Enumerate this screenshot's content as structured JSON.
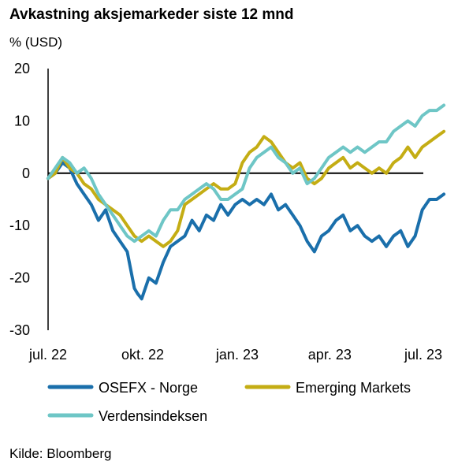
{
  "chart_data": {
    "type": "line",
    "title": "Avkastning aksjemarkeder siste 12 mnd",
    "ylabel": "% (USD)",
    "xlabel": "",
    "ylim": [
      -30,
      20
    ],
    "yticks": [
      "20",
      "10",
      "0",
      "-10",
      "-20",
      "-30"
    ],
    "ytick_values": [
      20,
      10,
      0,
      -10,
      -20,
      -30
    ],
    "x_ticks": [
      {
        "date": "2022-07-01",
        "label": "jul. 22"
      },
      {
        "date": "2022-10-01",
        "label": "okt. 22"
      },
      {
        "date": "2023-01-01",
        "label": "jan. 23"
      },
      {
        "date": "2023-04-01",
        "label": "apr. 23"
      },
      {
        "date": "2023-07-01",
        "label": "jul. 23"
      }
    ],
    "grid": false,
    "legend_position": "bottom",
    "series": [
      {
        "name": "OSEFX - Norge",
        "color": "#1a6fab",
        "points": [
          [
            "2022-07-01",
            -1
          ],
          [
            "2022-07-08",
            0
          ],
          [
            "2022-07-15",
            2
          ],
          [
            "2022-07-22",
            1
          ],
          [
            "2022-07-29",
            -2
          ],
          [
            "2022-08-05",
            -4
          ],
          [
            "2022-08-12",
            -6
          ],
          [
            "2022-08-19",
            -9
          ],
          [
            "2022-08-26",
            -7
          ],
          [
            "2022-09-02",
            -11
          ],
          [
            "2022-09-09",
            -13
          ],
          [
            "2022-09-16",
            -15
          ],
          [
            "2022-09-23",
            -22
          ],
          [
            "2022-09-26",
            -23
          ],
          [
            "2022-09-30",
            -24
          ],
          [
            "2022-10-07",
            -20
          ],
          [
            "2022-10-14",
            -21
          ],
          [
            "2022-10-21",
            -17
          ],
          [
            "2022-10-28",
            -14
          ],
          [
            "2022-11-04",
            -13
          ],
          [
            "2022-11-11",
            -12
          ],
          [
            "2022-11-18",
            -9
          ],
          [
            "2022-11-25",
            -11
          ],
          [
            "2022-12-02",
            -8
          ],
          [
            "2022-12-09",
            -9
          ],
          [
            "2022-12-16",
            -6
          ],
          [
            "2022-12-23",
            -8
          ],
          [
            "2022-12-30",
            -6
          ],
          [
            "2023-01-06",
            -5
          ],
          [
            "2023-01-13",
            -6
          ],
          [
            "2023-01-20",
            -5
          ],
          [
            "2023-01-27",
            -6
          ],
          [
            "2023-02-03",
            -4
          ],
          [
            "2023-02-10",
            -7
          ],
          [
            "2023-02-17",
            -6
          ],
          [
            "2023-02-24",
            -8
          ],
          [
            "2023-03-03",
            -10
          ],
          [
            "2023-03-10",
            -13
          ],
          [
            "2023-03-17",
            -15
          ],
          [
            "2023-03-24",
            -12
          ],
          [
            "2023-03-31",
            -11
          ],
          [
            "2023-04-07",
            -9
          ],
          [
            "2023-04-14",
            -8
          ],
          [
            "2023-04-21",
            -11
          ],
          [
            "2023-04-28",
            -10
          ],
          [
            "2023-05-05",
            -12
          ],
          [
            "2023-05-12",
            -13
          ],
          [
            "2023-05-19",
            -12
          ],
          [
            "2023-05-26",
            -14
          ],
          [
            "2023-06-02",
            -12
          ],
          [
            "2023-06-09",
            -11
          ],
          [
            "2023-06-16",
            -14
          ],
          [
            "2023-06-23",
            -12
          ],
          [
            "2023-06-30",
            -7
          ],
          [
            "2023-07-07",
            -5
          ],
          [
            "2023-07-14",
            -5
          ],
          [
            "2023-07-21",
            -4
          ]
        ]
      },
      {
        "name": "Emerging Markets",
        "color": "#c4ad14",
        "points": [
          [
            "2022-07-01",
            -1
          ],
          [
            "2022-07-08",
            0
          ],
          [
            "2022-07-15",
            3
          ],
          [
            "2022-07-22",
            1
          ],
          [
            "2022-07-29",
            0
          ],
          [
            "2022-08-05",
            -2
          ],
          [
            "2022-08-12",
            -3
          ],
          [
            "2022-08-19",
            -5
          ],
          [
            "2022-08-26",
            -6
          ],
          [
            "2022-09-02",
            -7
          ],
          [
            "2022-09-09",
            -8
          ],
          [
            "2022-09-16",
            -10
          ],
          [
            "2022-09-23",
            -12
          ],
          [
            "2022-09-30",
            -13
          ],
          [
            "2022-10-07",
            -12
          ],
          [
            "2022-10-14",
            -13
          ],
          [
            "2022-10-21",
            -14
          ],
          [
            "2022-10-28",
            -13
          ],
          [
            "2022-11-04",
            -11
          ],
          [
            "2022-11-11",
            -6
          ],
          [
            "2022-11-18",
            -5
          ],
          [
            "2022-11-25",
            -4
          ],
          [
            "2022-12-02",
            -3
          ],
          [
            "2022-12-09",
            -2
          ],
          [
            "2022-12-16",
            -3
          ],
          [
            "2022-12-23",
            -3
          ],
          [
            "2022-12-30",
            -2
          ],
          [
            "2023-01-06",
            2
          ],
          [
            "2023-01-13",
            4
          ],
          [
            "2023-01-20",
            5
          ],
          [
            "2023-01-27",
            7
          ],
          [
            "2023-02-03",
            6
          ],
          [
            "2023-02-10",
            4
          ],
          [
            "2023-02-17",
            2
          ],
          [
            "2023-02-24",
            1
          ],
          [
            "2023-03-03",
            2
          ],
          [
            "2023-03-10",
            -1
          ],
          [
            "2023-03-17",
            -2
          ],
          [
            "2023-03-24",
            -1
          ],
          [
            "2023-03-31",
            1
          ],
          [
            "2023-04-07",
            2
          ],
          [
            "2023-04-14",
            3
          ],
          [
            "2023-04-21",
            1
          ],
          [
            "2023-04-28",
            2
          ],
          [
            "2023-05-05",
            1
          ],
          [
            "2023-05-12",
            0
          ],
          [
            "2023-05-19",
            1
          ],
          [
            "2023-05-26",
            0
          ],
          [
            "2023-06-02",
            2
          ],
          [
            "2023-06-09",
            3
          ],
          [
            "2023-06-16",
            5
          ],
          [
            "2023-06-23",
            3
          ],
          [
            "2023-06-30",
            5
          ],
          [
            "2023-07-07",
            6
          ],
          [
            "2023-07-14",
            7
          ],
          [
            "2023-07-21",
            8
          ]
        ]
      },
      {
        "name": "Verdensindeksen",
        "color": "#6ec6c6",
        "points": [
          [
            "2022-07-01",
            -1
          ],
          [
            "2022-07-08",
            1
          ],
          [
            "2022-07-15",
            3
          ],
          [
            "2022-07-22",
            2
          ],
          [
            "2022-07-29",
            0
          ],
          [
            "2022-08-05",
            1
          ],
          [
            "2022-08-12",
            -1
          ],
          [
            "2022-08-19",
            -4
          ],
          [
            "2022-08-26",
            -6
          ],
          [
            "2022-09-02",
            -8
          ],
          [
            "2022-09-09",
            -10
          ],
          [
            "2022-09-16",
            -12
          ],
          [
            "2022-09-23",
            -13
          ],
          [
            "2022-09-30",
            -12
          ],
          [
            "2022-10-07",
            -11
          ],
          [
            "2022-10-14",
            -12
          ],
          [
            "2022-10-21",
            -9
          ],
          [
            "2022-10-28",
            -7
          ],
          [
            "2022-11-04",
            -7
          ],
          [
            "2022-11-11",
            -5
          ],
          [
            "2022-11-18",
            -4
          ],
          [
            "2022-11-25",
            -3
          ],
          [
            "2022-12-02",
            -2
          ],
          [
            "2022-12-09",
            -3
          ],
          [
            "2022-12-16",
            -5
          ],
          [
            "2022-12-23",
            -5
          ],
          [
            "2022-12-30",
            -4
          ],
          [
            "2023-01-06",
            -3
          ],
          [
            "2023-01-13",
            1
          ],
          [
            "2023-01-20",
            3
          ],
          [
            "2023-01-27",
            4
          ],
          [
            "2023-02-03",
            5
          ],
          [
            "2023-02-10",
            3
          ],
          [
            "2023-02-17",
            2
          ],
          [
            "2023-02-24",
            0
          ],
          [
            "2023-03-03",
            1
          ],
          [
            "2023-03-10",
            -2
          ],
          [
            "2023-03-17",
            -1
          ],
          [
            "2023-03-24",
            1
          ],
          [
            "2023-03-31",
            3
          ],
          [
            "2023-04-07",
            4
          ],
          [
            "2023-04-14",
            5
          ],
          [
            "2023-04-21",
            4
          ],
          [
            "2023-04-28",
            5
          ],
          [
            "2023-05-05",
            4
          ],
          [
            "2023-05-12",
            5
          ],
          [
            "2023-05-19",
            6
          ],
          [
            "2023-05-26",
            6
          ],
          [
            "2023-06-02",
            8
          ],
          [
            "2023-06-09",
            9
          ],
          [
            "2023-06-16",
            10
          ],
          [
            "2023-06-23",
            9
          ],
          [
            "2023-06-30",
            11
          ],
          [
            "2023-07-07",
            12
          ],
          [
            "2023-07-14",
            12
          ],
          [
            "2023-07-21",
            13
          ]
        ]
      }
    ]
  },
  "source": "Kilde: Bloomberg"
}
